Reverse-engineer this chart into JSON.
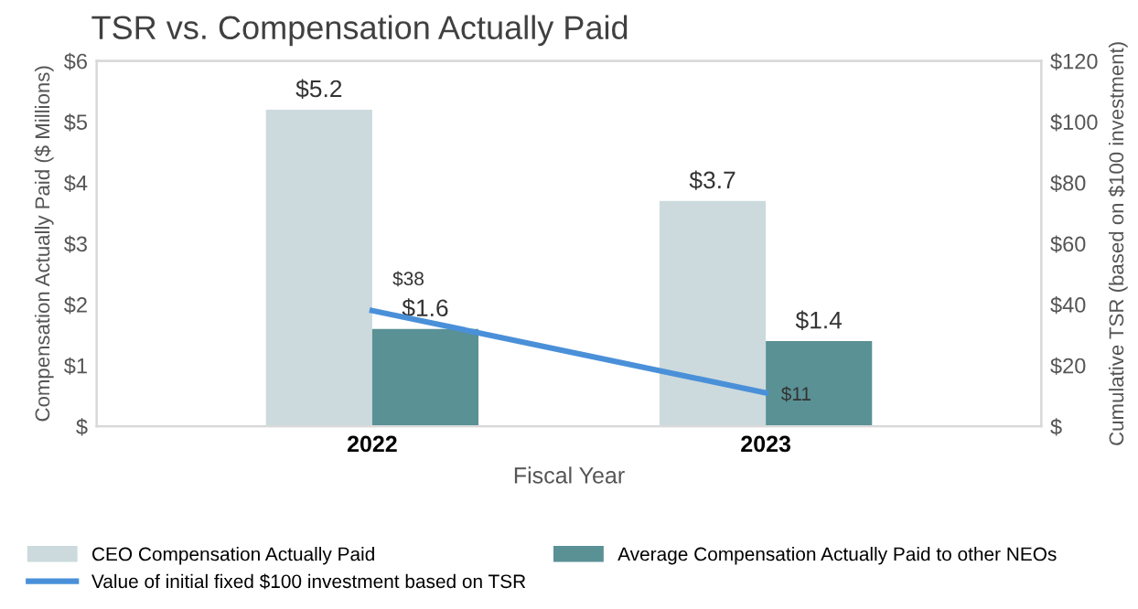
{
  "chart_data": {
    "type": "bar",
    "title": "TSR vs. Compensation Actually Paid",
    "xlabel": "Fiscal Year",
    "ylabel": "Compensation Actually Paid ($ Millions)",
    "y2label": "Cumulative TSR (based on $100 investment)",
    "categories": [
      "2022",
      "2023"
    ],
    "series": [
      {
        "name": "CEO Compensation Actually Paid",
        "color": "#ccdadd",
        "values": [
          5.2,
          3.7
        ],
        "value_labels": [
          "$5.2",
          "$3.7"
        ]
      },
      {
        "name": "Average Compensation Actually Paid to other NEOs",
        "color": "#5a9195",
        "values": [
          1.6,
          1.4
        ],
        "value_labels": [
          "$1.6",
          "$1.4"
        ]
      },
      {
        "name": "Value of initial fixed $100 investment based on TSR",
        "type": "line",
        "axis": "y2",
        "color": "#4a90d9",
        "values": [
          38,
          11
        ],
        "value_labels": [
          "$38",
          "$11"
        ]
      }
    ],
    "ylim": [
      0,
      6
    ],
    "yticks": [
      {
        "value": 0,
        "label": "$"
      },
      {
        "value": 1,
        "label": "$1"
      },
      {
        "value": 2,
        "label": "$2"
      },
      {
        "value": 3,
        "label": "$3"
      },
      {
        "value": 4,
        "label": "$4"
      },
      {
        "value": 5,
        "label": "$5"
      },
      {
        "value": 6,
        "label": "$6"
      }
    ],
    "y2lim": [
      0,
      120
    ],
    "y2ticks": [
      {
        "value": 0,
        "label": "$"
      },
      {
        "value": 20,
        "label": "$20"
      },
      {
        "value": 40,
        "label": "$40"
      },
      {
        "value": 60,
        "label": "$60"
      },
      {
        "value": 80,
        "label": "$80"
      },
      {
        "value": 100,
        "label": "$100"
      },
      {
        "value": 120,
        "label": "$120"
      }
    ],
    "legend": "bottom",
    "grid": false,
    "marker": "none",
    "line_style": "solid"
  }
}
